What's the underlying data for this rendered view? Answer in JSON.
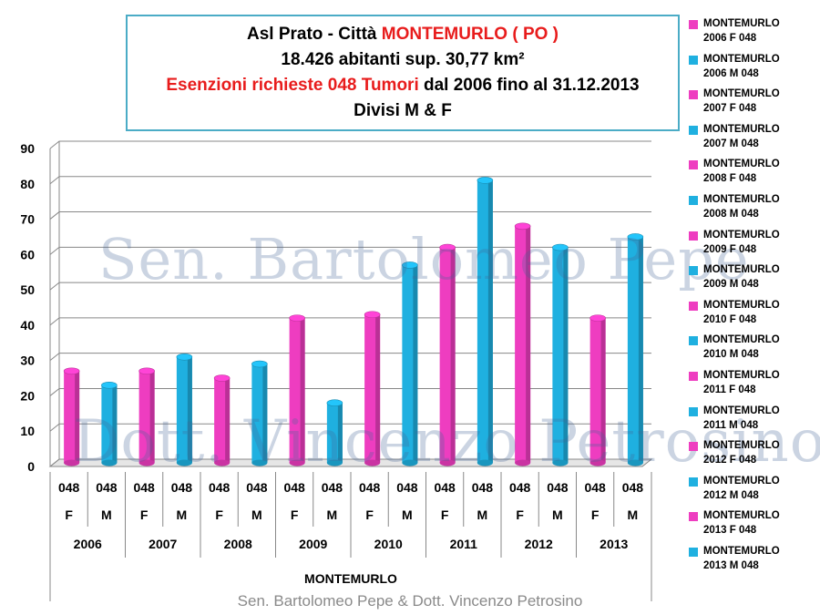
{
  "title": {
    "line1_prefix": "Asl Prato - Città ",
    "line1_highlight": "MONTEMURLO ( PO )",
    "line2": "18.426 abitanti sup. 30,77 km²",
    "line3_highlight": "Esenzioni richieste 048 Tumori",
    "line3_suffix": " dal 2006 fino al 31.12.2013",
    "line4": "Divisi M & F"
  },
  "watermarks": {
    "line1": "Sen. Bartolomeo Pepe",
    "line2": "Dott. Vincenzo Petrosino"
  },
  "credit": "Sen. Bartolomeo Pepe &  Dott. Vincenzo Petrosino",
  "colors": {
    "female": "#ee3dc0",
    "male": "#1fb0e0",
    "grid": "#888888",
    "title_border": "#4bacc6",
    "highlight": "#e81c1c"
  },
  "chart_data": {
    "type": "bar",
    "ylim": [
      0,
      90
    ],
    "yticks": [
      0,
      10,
      20,
      30,
      40,
      50,
      60,
      70,
      80,
      90
    ],
    "grid": true,
    "legend_position": "right",
    "x_group_label": "MONTEMURLO",
    "years": [
      "2006",
      "2007",
      "2008",
      "2009",
      "2010",
      "2011",
      "2012",
      "2013"
    ],
    "bars": [
      {
        "code": "048",
        "sex": "F",
        "year": "2006",
        "value": 27
      },
      {
        "code": "048",
        "sex": "M",
        "year": "2006",
        "value": 23
      },
      {
        "code": "048",
        "sex": "F",
        "year": "2007",
        "value": 27
      },
      {
        "code": "048",
        "sex": "M",
        "year": "2007",
        "value": 31
      },
      {
        "code": "048",
        "sex": "F",
        "year": "2008",
        "value": 25
      },
      {
        "code": "048",
        "sex": "M",
        "year": "2008",
        "value": 29
      },
      {
        "code": "048",
        "sex": "F",
        "year": "2009",
        "value": 42
      },
      {
        "code": "048",
        "sex": "M",
        "year": "2009",
        "value": 18
      },
      {
        "code": "048",
        "sex": "F",
        "year": "2010",
        "value": 43
      },
      {
        "code": "048",
        "sex": "M",
        "year": "2010",
        "value": 57
      },
      {
        "code": "048",
        "sex": "F",
        "year": "2011",
        "value": 62
      },
      {
        "code": "048",
        "sex": "M",
        "year": "2011",
        "value": 81
      },
      {
        "code": "048",
        "sex": "F",
        "year": "2012",
        "value": 68
      },
      {
        "code": "048",
        "sex": "M",
        "year": "2012",
        "value": 62
      },
      {
        "code": "048",
        "sex": "F",
        "year": "2013",
        "value": 42
      },
      {
        "code": "048",
        "sex": "M",
        "year": "2013",
        "value": 65
      }
    ],
    "legend": [
      {
        "label": "MONTEMURLO\n2006 F 048",
        "sex": "F"
      },
      {
        "label": "MONTEMURLO\n2006 M 048",
        "sex": "M"
      },
      {
        "label": "MONTEMURLO\n2007 F 048",
        "sex": "F"
      },
      {
        "label": "MONTEMURLO\n2007 M 048",
        "sex": "M"
      },
      {
        "label": "MONTEMURLO\n2008 F 048",
        "sex": "F"
      },
      {
        "label": "MONTEMURLO\n2008 M 048",
        "sex": "M"
      },
      {
        "label": "MONTEMURLO\n2009 F 048",
        "sex": "F"
      },
      {
        "label": "MONTEMURLO\n2009 M 048",
        "sex": "M"
      },
      {
        "label": "MONTEMURLO\n2010 F 048",
        "sex": "F"
      },
      {
        "label": "MONTEMURLO\n2010 M 048",
        "sex": "M"
      },
      {
        "label": "MONTEMURLO\n2011 F 048",
        "sex": "F"
      },
      {
        "label": "MONTEMURLO\n2011 M 048",
        "sex": "M"
      },
      {
        "label": "MONTEMURLO\n2012 F 048",
        "sex": "F"
      },
      {
        "label": "MONTEMURLO\n2012 M 048",
        "sex": "M"
      },
      {
        "label": "MONTEMURLO\n2013 F 048",
        "sex": "F"
      },
      {
        "label": "MONTEMURLO\n2013 M 048",
        "sex": "M"
      }
    ]
  }
}
